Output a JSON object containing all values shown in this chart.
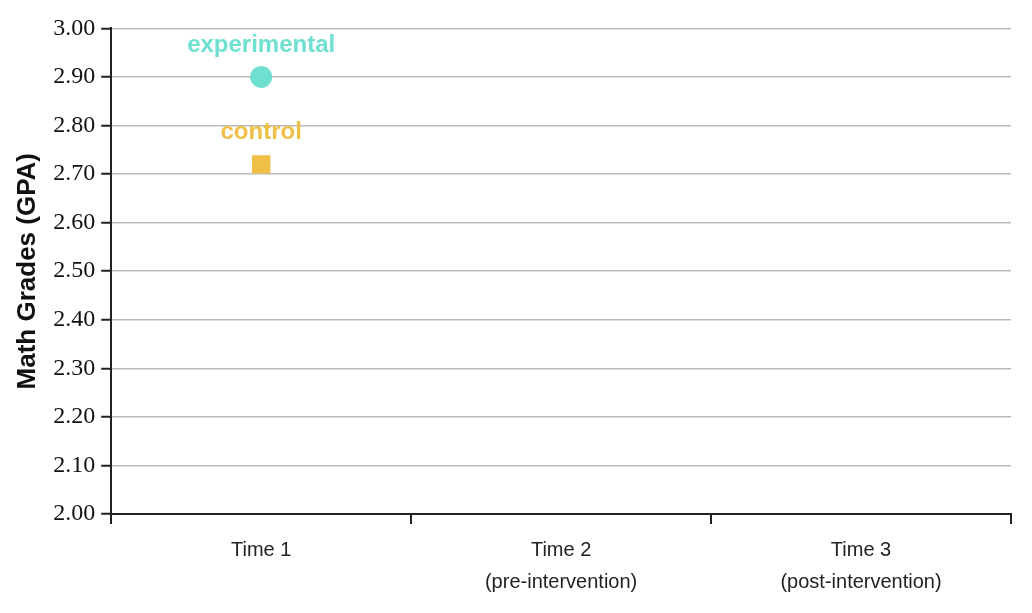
{
  "chart_data": {
    "type": "scatter",
    "ylabel": "Math Grades (GPA)",
    "categories": [
      "Time 1",
      "Time 2\n(pre-intervention)",
      "Time 3\n(post-intervention)"
    ],
    "series": [
      {
        "name": "experimental",
        "color": "#6fe0d0",
        "marker": "circle",
        "values": [
          2.9,
          null,
          null
        ]
      },
      {
        "name": "control",
        "color": "#f0bf45",
        "marker": "square",
        "values": [
          2.72,
          null,
          null
        ]
      }
    ],
    "ylim": [
      2,
      3
    ],
    "yticks": [
      {
        "value": 2,
        "label": "2.00"
      },
      {
        "value": 2.1,
        "label": "2.10"
      },
      {
        "value": 2.2,
        "label": "2.20"
      },
      {
        "value": 2.3,
        "label": "2.30"
      },
      {
        "value": 2.4,
        "label": "2.40"
      },
      {
        "value": 2.5,
        "label": "2.50"
      },
      {
        "value": 2.6,
        "label": "2.60"
      },
      {
        "value": 2.7,
        "label": "2.70"
      },
      {
        "value": 2.8,
        "label": "2.80"
      },
      {
        "value": 2.9,
        "label": "2.90"
      },
      {
        "value": 3,
        "label": "3.00"
      }
    ],
    "grid": "y",
    "legend": false
  }
}
